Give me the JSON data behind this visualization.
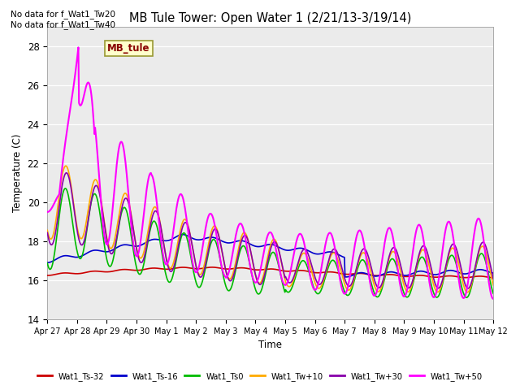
{
  "title": "MB Tule Tower: Open Water 1 (2/21/13-3/19/14)",
  "xlabel": "Time",
  "ylabel": "Temperature (C)",
  "ylim": [
    14,
    29
  ],
  "yticks": [
    14,
    16,
    18,
    20,
    22,
    24,
    26,
    28
  ],
  "note_line1": "No data for f_Wat1_Tw20",
  "note_line2": "No data for f_Wat1_Tw40",
  "legend_label": "MB_tule",
  "x_tick_labels": [
    "Apr 27",
    "Apr 28",
    "Apr 29",
    "Apr 30",
    "May 1",
    "May 2",
    "May 3",
    "May 4",
    "May 5",
    "May 6",
    "May 7",
    "May 8",
    "May 9",
    "May 10",
    "May 11",
    "May 12"
  ],
  "series_labels": [
    "Wat1_Ts-32",
    "Wat1_Ts-16",
    "Wat1_Ts0",
    "Wat1_Tw+10",
    "Wat1_Tw+30",
    "Wat1_Tw+50"
  ],
  "series_colors": [
    "#cc0000",
    "#0000cc",
    "#00bb00",
    "#ffaa00",
    "#8800aa",
    "#ff00ff"
  ],
  "bg_color": "#dcdcdc",
  "plot_bg_color": "#ebebeb"
}
